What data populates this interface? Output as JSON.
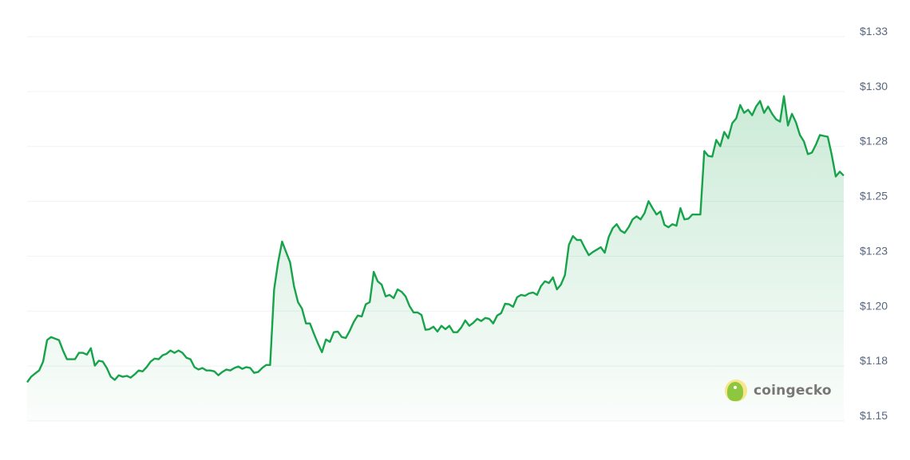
{
  "chart_data": {
    "type": "area",
    "title": "",
    "xlabel": "",
    "ylabel": "",
    "ylim": [
      1.15,
      1.325
    ],
    "y_ticks": [
      1.325,
      1.3,
      1.275,
      1.25,
      1.225,
      1.2,
      1.175,
      1.15
    ],
    "y_tick_labels": [
      "$1.33",
      "$1.30",
      "$1.28",
      "$1.25",
      "$1.23",
      "$1.20",
      "$1.18",
      "$1.15"
    ],
    "y_axis_position": "right",
    "grid": true,
    "line_color": "#16a34a",
    "fill_color": "#16a34a",
    "values": [
      1.1676,
      1.1701,
      1.1716,
      1.173,
      1.177,
      1.1868,
      1.1882,
      1.1875,
      1.1868,
      1.1821,
      1.1781,
      1.1781,
      1.1781,
      1.181,
      1.181,
      1.1802,
      1.1831,
      1.1752,
      1.1774,
      1.177,
      1.1741,
      1.1701,
      1.1687,
      1.1708,
      1.1701,
      1.1705,
      1.1697,
      1.1712,
      1.173,
      1.1726,
      1.1745,
      1.177,
      1.1784,
      1.1781,
      1.1799,
      1.1806,
      1.1821,
      1.181,
      1.1821,
      1.181,
      1.1788,
      1.1781,
      1.1745,
      1.1734,
      1.1741,
      1.173,
      1.173,
      1.1726,
      1.1708,
      1.1723,
      1.1734,
      1.173,
      1.1741,
      1.1748,
      1.1737,
      1.1745,
      1.1741,
      1.1719,
      1.1723,
      1.1741,
      1.1755,
      1.1755,
      1.2099,
      1.2222,
      1.2317,
      1.2269,
      1.2222,
      1.2114,
      1.2041,
      1.2012,
      1.1944,
      1.1944,
      1.1897,
      1.1853,
      1.1813,
      1.1871,
      1.186,
      1.1904,
      1.1907,
      1.1882,
      1.1878,
      1.1911,
      1.1951,
      1.198,
      1.1976,
      1.2031,
      1.2041,
      1.2179,
      1.2136,
      1.2121,
      1.2067,
      1.2074,
      1.2059,
      1.2099,
      1.2088,
      1.2067,
      1.2023,
      1.1994,
      1.1994,
      1.1983,
      1.1915,
      1.1918,
      1.1929,
      1.1907,
      1.1933,
      1.1918,
      1.1933,
      1.1904,
      1.1904,
      1.1926,
      1.1958,
      1.1933,
      1.1947,
      1.1965,
      1.1955,
      1.1969,
      1.1965,
      1.1944,
      1.198,
      1.1991,
      1.2034,
      1.2031,
      1.202,
      1.2063,
      1.2074,
      1.207,
      1.2081,
      1.2085,
      1.2074,
      1.2114,
      1.2136,
      1.2128,
      1.2154,
      1.2099,
      1.2121,
      1.2164,
      1.2302,
      1.2342,
      1.2324,
      1.2324,
      1.2288,
      1.2255,
      1.2269,
      1.228,
      1.2291,
      1.2266,
      1.2338,
      1.2378,
      1.2396,
      1.2367,
      1.2356,
      1.2382,
      1.2418,
      1.2432,
      1.2418,
      1.2447,
      1.2501,
      1.2469,
      1.244,
      1.2454,
      1.2393,
      1.2382,
      1.2396,
      1.2389,
      1.2469,
      1.2418,
      1.2421,
      1.244,
      1.244,
      1.244,
      1.2729,
      1.2707,
      1.2704,
      1.278,
      1.2751,
      1.2816,
      1.2787,
      1.2856,
      1.2878,
      1.2939,
      1.2903,
      1.2917,
      1.2892,
      1.2932,
      1.2957,
      1.2903,
      1.2932,
      1.2899,
      1.2874,
      1.2863,
      1.2979,
      1.2845,
      1.2899,
      1.286,
      1.2802,
      1.2773,
      1.2715,
      1.2722,
      1.2758,
      1.2802,
      1.2798,
      1.2794,
      1.2711,
      1.2613,
      1.2635,
      1.2617
    ]
  },
  "watermark": {
    "text": "coingecko",
    "icon": "coingecko-logo-icon"
  }
}
